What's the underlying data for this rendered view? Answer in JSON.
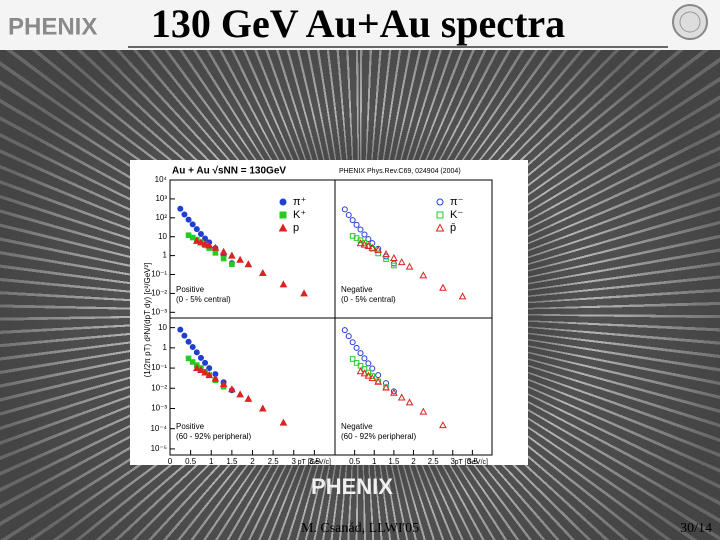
{
  "header": {
    "logo": "PHENIX",
    "title": "130 GeV Au+Au spectra"
  },
  "footer": {
    "logo": "PHENIX",
    "author": "M. Csanád, LLWI'05",
    "page": "30/14"
  },
  "chart_data": [
    {
      "type": "scatter",
      "title": "Au + Au √sNN = 130GeV",
      "ylabel": "(1/2π pT) d²N/(dpT dy) [c²/GeV²]",
      "log_y": true,
      "legend": true,
      "label": "Positive",
      "note": "(0 - 5% central)",
      "xlim": [
        0,
        4
      ],
      "ylim": [
        0.0005,
        10000
      ],
      "yticks": [
        {
          "value": 10000,
          "label": "10⁴"
        },
        {
          "value": 1000,
          "label": "10³"
        },
        {
          "value": 100,
          "label": "10²"
        },
        10,
        1,
        {
          "value": 0.1,
          "label": "10⁻¹"
        },
        {
          "value": 0.01,
          "label": "10⁻²"
        },
        {
          "value": 0.001,
          "label": "10⁻³"
        }
      ],
      "series": [
        {
          "name": "π⁺",
          "color": "#1f3fd0",
          "marker": "circle",
          "filled": true,
          "x": [
            0.25,
            0.35,
            0.45,
            0.55,
            0.65,
            0.75,
            0.85,
            0.95,
            1.1,
            1.3,
            1.5
          ],
          "values": [
            300,
            150,
            80,
            45,
            25,
            14,
            8,
            5,
            2.5,
            1,
            0.4
          ]
        },
        {
          "name": "K⁺",
          "color": "#22cc22",
          "marker": "square",
          "filled": true,
          "x": [
            0.45,
            0.55,
            0.65,
            0.75,
            0.85,
            0.95,
            1.1,
            1.3,
            1.5
          ],
          "values": [
            12,
            9,
            7,
            5,
            3.5,
            2.5,
            1.4,
            0.7,
            0.35
          ]
        },
        {
          "name": "p",
          "color": "#dd2222",
          "marker": "triangle",
          "filled": true,
          "x": [
            0.65,
            0.75,
            0.85,
            0.95,
            1.1,
            1.3,
            1.5,
            1.7,
            1.9,
            2.25,
            2.75,
            3.25
          ],
          "values": [
            6,
            5,
            4.2,
            3.5,
            2.6,
            1.6,
            1,
            0.6,
            0.35,
            0.12,
            0.03,
            0.01
          ]
        }
      ]
    },
    {
      "type": "scatter",
      "title": "PHENIX Phys.Rev.C69, 024904 (2004)",
      "log_y": true,
      "legend": true,
      "label": "Negative",
      "note": "(0 - 5% central)",
      "xlim": [
        0,
        4
      ],
      "ylim": [
        0.0005,
        10000
      ],
      "series": [
        {
          "name": "π⁻",
          "color": "#1f3fd0",
          "marker": "circle",
          "filled": false,
          "x": [
            0.25,
            0.35,
            0.45,
            0.55,
            0.65,
            0.75,
            0.85,
            0.95,
            1.1,
            1.3,
            1.5
          ],
          "values": [
            280,
            140,
            75,
            42,
            24,
            13,
            7.5,
            4.6,
            2.3,
            0.9,
            0.38
          ]
        },
        {
          "name": "K⁻",
          "color": "#22cc22",
          "marker": "square",
          "filled": false,
          "x": [
            0.45,
            0.55,
            0.65,
            0.75,
            0.85,
            0.95,
            1.1,
            1.3,
            1.5
          ],
          "values": [
            11,
            8.5,
            6.5,
            4.7,
            3.3,
            2.3,
            1.3,
            0.65,
            0.3
          ]
        },
        {
          "name": "p̄",
          "color": "#dd2222",
          "marker": "triangle",
          "filled": false,
          "x": [
            0.65,
            0.75,
            0.85,
            0.95,
            1.1,
            1.3,
            1.5,
            1.7,
            1.9,
            2.25,
            2.75,
            3.25
          ],
          "values": [
            4.5,
            3.8,
            3.2,
            2.6,
            2,
            1.2,
            0.75,
            0.45,
            0.26,
            0.09,
            0.02,
            0.007
          ]
        }
      ]
    },
    {
      "type": "scatter",
      "log_y": true,
      "label": "Positive",
      "note": "(60 - 92% peripheral)",
      "xlim": [
        0,
        4
      ],
      "ylim": [
        5e-06,
        30
      ],
      "xlabel": "pT [GeV/c]",
      "xticks": [
        0,
        0.5,
        1,
        1.5,
        2,
        2.5,
        3,
        3.5
      ],
      "yticks": [
        10,
        1,
        {
          "value": 0.1,
          "label": "10⁻¹"
        },
        {
          "value": 0.01,
          "label": "10⁻²"
        },
        {
          "value": 0.001,
          "label": "10⁻³"
        },
        {
          "value": 0.0001,
          "label": "10⁻⁴"
        },
        {
          "value": 1e-05,
          "label": "10⁻⁵"
        }
      ],
      "series": [
        {
          "color": "#1f3fd0",
          "marker": "circle",
          "filled": true,
          "x": [
            0.25,
            0.35,
            0.45,
            0.55,
            0.65,
            0.75,
            0.85,
            0.95,
            1.1,
            1.3,
            1.5
          ],
          "values": [
            8,
            4,
            2,
            1.1,
            0.6,
            0.32,
            0.18,
            0.1,
            0.05,
            0.02,
            0.008
          ]
        },
        {
          "color": "#22cc22",
          "marker": "square",
          "filled": true,
          "x": [
            0.45,
            0.55,
            0.65,
            0.75,
            0.85,
            0.95,
            1.1,
            1.3
          ],
          "values": [
            0.3,
            0.2,
            0.14,
            0.1,
            0.065,
            0.045,
            0.025,
            0.012
          ]
        },
        {
          "color": "#dd2222",
          "marker": "triangle",
          "filled": true,
          "x": [
            0.65,
            0.75,
            0.85,
            0.95,
            1.1,
            1.3,
            1.5,
            1.7,
            1.9,
            2.25,
            2.75
          ],
          "values": [
            0.1,
            0.08,
            0.06,
            0.045,
            0.03,
            0.016,
            0.009,
            0.005,
            0.003,
            0.001,
            0.0002
          ]
        }
      ]
    },
    {
      "type": "scatter",
      "log_y": true,
      "label": "Negative",
      "note": "(60 - 92% peripheral)",
      "xlim": [
        0,
        4
      ],
      "ylim": [
        5e-06,
        30
      ],
      "xlabel": "pT [GeV/c]",
      "xticks": [
        0.5,
        1,
        1.5,
        2,
        2.5,
        3,
        3.5
      ],
      "series": [
        {
          "color": "#1f3fd0",
          "marker": "circle",
          "filled": false,
          "x": [
            0.25,
            0.35,
            0.45,
            0.55,
            0.65,
            0.75,
            0.85,
            0.95,
            1.1,
            1.3,
            1.5
          ],
          "values": [
            7.5,
            3.8,
            1.9,
            1,
            0.55,
            0.3,
            0.17,
            0.095,
            0.045,
            0.018,
            0.007
          ]
        },
        {
          "color": "#22cc22",
          "marker": "square",
          "filled": false,
          "x": [
            0.45,
            0.55,
            0.65,
            0.75,
            0.85,
            0.95,
            1.1,
            1.3
          ],
          "values": [
            0.28,
            0.18,
            0.13,
            0.09,
            0.06,
            0.04,
            0.022,
            0.011
          ]
        },
        {
          "color": "#dd2222",
          "marker": "triangle",
          "filled": false,
          "x": [
            0.65,
            0.75,
            0.85,
            0.95,
            1.1,
            1.3,
            1.5,
            1.7,
            1.9,
            2.25,
            2.75
          ],
          "values": [
            0.07,
            0.055,
            0.042,
            0.032,
            0.021,
            0.011,
            0.006,
            0.0035,
            0.002,
            0.0007,
            0.00015
          ]
        }
      ]
    }
  ]
}
